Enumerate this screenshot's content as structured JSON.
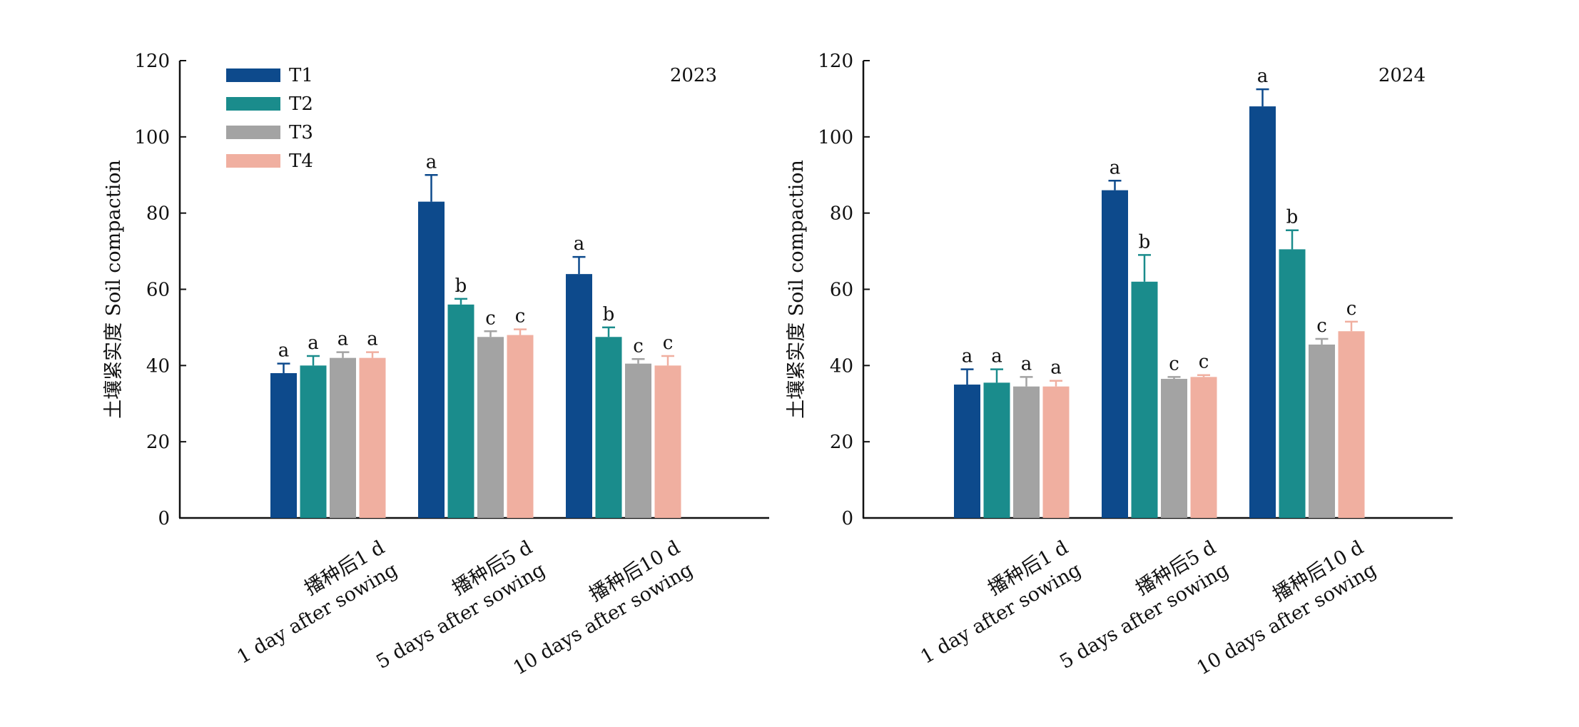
{
  "chart_data": [
    {
      "type": "bar",
      "title": "2023",
      "ylabel": "土壤紧实度 Soil compaction",
      "xlabel": "",
      "ylim": [
        0,
        120
      ],
      "yticks": [
        0,
        20,
        40,
        60,
        80,
        100,
        120
      ],
      "categories": [
        [
          "播种后1 d",
          "1 day after sowing"
        ],
        [
          "播种后5 d",
          "5 days after sowing"
        ],
        [
          "播种后10 d",
          "10 days after sowing"
        ]
      ],
      "series": [
        {
          "name": "T1",
          "values": [
            38,
            83,
            64
          ],
          "errors": [
            2.5,
            7,
            4.5
          ],
          "letters": [
            "a",
            "a",
            "a"
          ]
        },
        {
          "name": "T2",
          "values": [
            40,
            56,
            47.5
          ],
          "errors": [
            2.5,
            1.5,
            2.5
          ],
          "letters": [
            "a",
            "b",
            "b"
          ]
        },
        {
          "name": "T3",
          "values": [
            42,
            47.5,
            40.5
          ],
          "errors": [
            1.5,
            1.5,
            1.2
          ],
          "letters": [
            "a",
            "c",
            "c"
          ]
        },
        {
          "name": "T4",
          "values": [
            42,
            48,
            40
          ],
          "errors": [
            1.5,
            1.5,
            2.5
          ],
          "letters": [
            "a",
            "c",
            "c"
          ]
        }
      ],
      "legend": "top-left",
      "grid": false
    },
    {
      "type": "bar",
      "title": "2024",
      "ylabel": "土壤紧实度 Soil compaction",
      "xlabel": "",
      "ylim": [
        0,
        120
      ],
      "yticks": [
        0,
        20,
        40,
        60,
        80,
        100,
        120
      ],
      "categories": [
        [
          "播种后1 d",
          "1 day after sowing"
        ],
        [
          "播种后5 d",
          "5 days after sowing"
        ],
        [
          "播种后10 d",
          "10 days after sowing"
        ]
      ],
      "series": [
        {
          "name": "T1",
          "values": [
            35,
            86,
            108
          ],
          "errors": [
            4,
            2.5,
            4.5
          ],
          "letters": [
            "a",
            "a",
            "a"
          ]
        },
        {
          "name": "T2",
          "values": [
            35.5,
            62,
            70.5
          ],
          "errors": [
            3.5,
            7,
            5
          ],
          "letters": [
            "a",
            "b",
            "b"
          ]
        },
        {
          "name": "T3",
          "values": [
            34.5,
            36.5,
            45.5
          ],
          "errors": [
            2.5,
            0.5,
            1.5
          ],
          "letters": [
            "a",
            "c",
            "c"
          ]
        },
        {
          "name": "T4",
          "values": [
            34.5,
            37,
            49
          ],
          "errors": [
            1.5,
            0.5,
            2.5
          ],
          "letters": [
            "a",
            "c",
            "c"
          ]
        }
      ],
      "legend": "none",
      "grid": false
    }
  ],
  "colors": {
    "T1": "#0d4a8c",
    "T2": "#1a8c8c",
    "T3": "#a3a3a3",
    "T4": "#f0afa0",
    "axis": "#111111"
  }
}
